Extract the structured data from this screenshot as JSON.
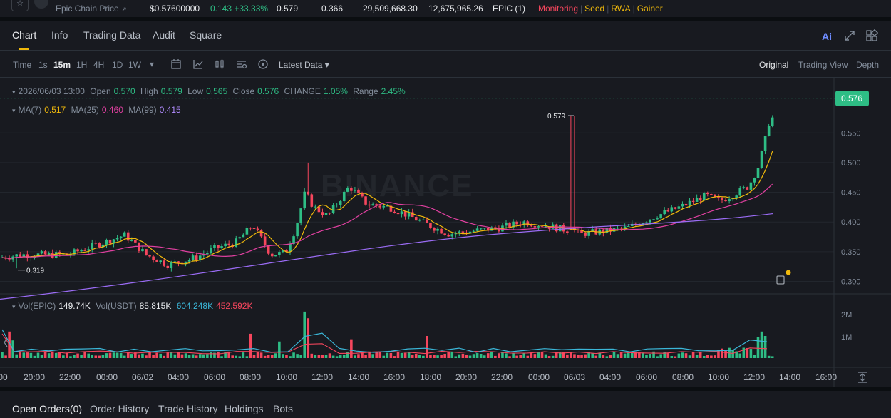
{
  "ticker": {
    "pair_label": "Epic Chain Price",
    "pair_arrow": "↗",
    "price": "$0.57600000",
    "change": "0.143 +33.33%",
    "high": "0.579",
    "low": "0.366",
    "vol_base": "29,509,668.30",
    "vol_quote": "12,675,965.26",
    "token_count": "EPIC (1)",
    "tags": [
      "Monitoring",
      "Seed",
      "RWA",
      "Gainer"
    ],
    "star_icon": "star-icon",
    "logo_icon": "coin-logo"
  },
  "tabs": [
    "Chart",
    "Info",
    "Trading Data",
    "Audit",
    "Square"
  ],
  "ai_label": "Ai",
  "toolbar": {
    "time_label": "Time",
    "intervals": [
      "1s",
      "15m",
      "1H",
      "4H",
      "1D",
      "1W"
    ],
    "active_interval": "15m",
    "dropdown_caret": "▾",
    "latest_data": "Latest Data",
    "views": [
      "Original",
      "Trading View",
      "Depth"
    ]
  },
  "ohlc": {
    "date": "2026/06/03 13:00",
    "open_label": "Open",
    "open": "0.570",
    "high_label": "High",
    "high": "0.579",
    "low_label": "Low",
    "low": "0.565",
    "close_label": "Close",
    "close": "0.576",
    "change_label": "CHANGE",
    "change": "1.05%",
    "range_label": "Range",
    "range": "2.45%"
  },
  "ma": {
    "ma7_label": "MA(7)",
    "ma7": "0.517",
    "ma25_label": "MA(25)",
    "ma25": "0.460",
    "ma99_label": "MA(99)",
    "ma99": "0.415"
  },
  "vol": {
    "base_label": "Vol(EPIC)",
    "base": "149.74K",
    "quote_label": "Vol(USDT)",
    "quote": "85.815K",
    "ma1": "604.248K",
    "ma2": "452.592K"
  },
  "chart_data": {
    "type": "candlestick",
    "price_axis": [
      "0.550",
      "0.500",
      "0.450",
      "0.400",
      "0.350",
      "0.300"
    ],
    "volume_axis": [
      "2M",
      "1M"
    ],
    "time_axis": [
      "00",
      "20:00",
      "22:00",
      "00:00",
      "06/02",
      "04:00",
      "06:00",
      "08:00",
      "10:00",
      "12:00",
      "14:00",
      "16:00",
      "18:00",
      "20:00",
      "22:00",
      "00:00",
      "06/03",
      "04:00",
      "06:00",
      "08:00",
      "10:00",
      "12:00",
      "14:00",
      "16:00"
    ],
    "current_price": "0.576",
    "peak_label": "0.579",
    "trough_label": "0.319",
    "colors": {
      "up": "#2ebd85",
      "down": "#f6465d",
      "ma7": "#f0b90b",
      "ma25": "#e040a0",
      "ma99": "#9b6cf5"
    },
    "watermark": "BINANCE"
  },
  "bottom_tabs": [
    "Open Orders(0)",
    "Order History",
    "Trade History",
    "Holdings",
    "Bots"
  ]
}
